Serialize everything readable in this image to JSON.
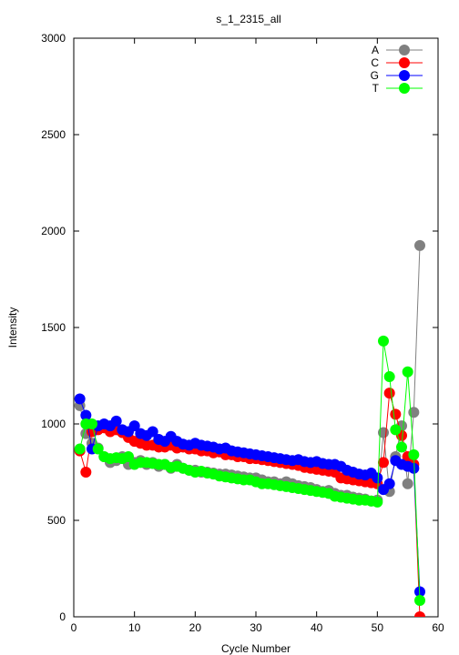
{
  "chart_data": {
    "type": "line",
    "title": "s_1_2315_all",
    "xlabel": "Cycle Number",
    "ylabel": "Intensity",
    "xlim": [
      0,
      60
    ],
    "ylim": [
      0,
      3000
    ],
    "xticks": [
      0,
      10,
      20,
      30,
      40,
      50,
      60
    ],
    "yticks": [
      0,
      500,
      1000,
      1500,
      2000,
      2500,
      3000
    ],
    "grid": false,
    "legend_position": "top-right",
    "x": [
      1,
      2,
      3,
      4,
      5,
      6,
      7,
      8,
      9,
      10,
      11,
      12,
      13,
      14,
      15,
      16,
      17,
      18,
      19,
      20,
      21,
      22,
      23,
      24,
      25,
      26,
      27,
      28,
      29,
      30,
      31,
      32,
      33,
      34,
      35,
      36,
      37,
      38,
      39,
      40,
      41,
      42,
      43,
      44,
      45,
      46,
      47,
      48,
      49,
      50,
      51,
      52,
      53,
      54,
      55,
      56,
      57
    ],
    "series": [
      {
        "name": "A",
        "color": "#808080",
        "values": [
          1095,
          950,
          900,
          875,
          830,
          800,
          810,
          830,
          790,
          800,
          810,
          790,
          800,
          780,
          790,
          770,
          790,
          770,
          760,
          760,
          750,
          750,
          745,
          740,
          740,
          735,
          730,
          725,
          720,
          720,
          710,
          700,
          700,
          690,
          700,
          690,
          680,
          675,
          670,
          660,
          650,
          655,
          640,
          630,
          630,
          620,
          615,
          610,
          600,
          605,
          955,
          650,
          830,
          990,
          690,
          1060,
          1925
        ]
      },
      {
        "name": "C",
        "color": "#ff0000",
        "values": [
          860,
          750,
          960,
          970,
          980,
          960,
          970,
          955,
          930,
          910,
          900,
          890,
          890,
          880,
          880,
          890,
          875,
          880,
          870,
          870,
          860,
          860,
          850,
          855,
          840,
          840,
          830,
          830,
          820,
          820,
          815,
          810,
          805,
          800,
          795,
          790,
          785,
          775,
          770,
          765,
          760,
          755,
          750,
          720,
          715,
          710,
          705,
          700,
          695,
          690,
          800,
          1160,
          1050,
          940,
          830,
          790,
          0
        ]
      },
      {
        "name": "G",
        "color": "#0000ff",
        "values": [
          1130,
          1045,
          870,
          990,
          1000,
          990,
          1015,
          970,
          960,
          990,
          950,
          940,
          960,
          920,
          910,
          935,
          910,
          895,
          890,
          900,
          890,
          885,
          880,
          870,
          875,
          860,
          855,
          850,
          845,
          840,
          835,
          830,
          825,
          820,
          815,
          810,
          815,
          805,
          800,
          805,
          795,
          790,
          790,
          780,
          760,
          750,
          740,
          735,
          745,
          720,
          660,
          690,
          810,
          790,
          780,
          770,
          130
        ]
      },
      {
        "name": "T",
        "color": "#00ff00",
        "values": [
          870,
          1000,
          1000,
          870,
          830,
          820,
          825,
          820,
          830,
          790,
          800,
          800,
          795,
          790,
          790,
          775,
          780,
          770,
          760,
          750,
          755,
          745,
          740,
          730,
          725,
          720,
          715,
          710,
          710,
          700,
          690,
          690,
          685,
          680,
          675,
          670,
          665,
          660,
          655,
          650,
          645,
          640,
          625,
          620,
          615,
          610,
          605,
          605,
          600,
          595,
          1430,
          1245,
          970,
          880,
          1270,
          840,
          85
        ]
      }
    ]
  }
}
